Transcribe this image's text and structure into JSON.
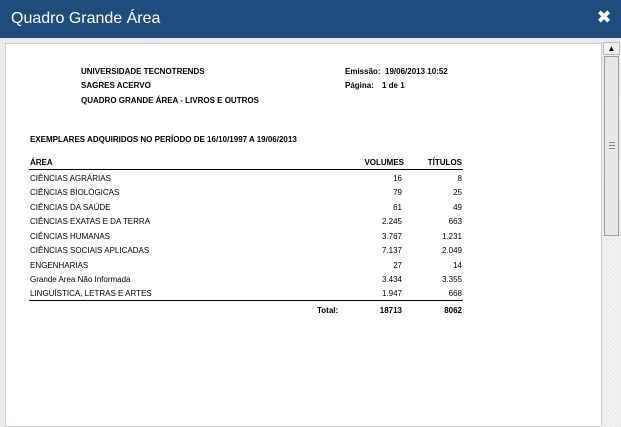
{
  "window": {
    "title": "Quadro Grande Área",
    "close_glyph": "✖"
  },
  "report": {
    "header": {
      "line1": "UNIVERSIDADE TECNOTRENDS",
      "line2": "SAGRES ACERVO",
      "line3": "QUADRO GRANDE ÁREA -  LIVROS E OUTROS",
      "emissao_label": "Emissão:",
      "emissao_value": "19/06/2013 10:52",
      "pagina_label": "Página:",
      "pagina_value": "1 de 1"
    },
    "section_title": "EXEMPLARES ADQUIRIDOS NO PERÍODO DE 16/10/1997 A 19/06/2013",
    "columns": {
      "area": "ÁREA",
      "volumes": "VOLUMES",
      "titulos": "TÍTULOS"
    },
    "rows": [
      {
        "area": "CIÊNCIAS AGRÁRIAS",
        "volumes": "16",
        "titulos": "8"
      },
      {
        "area": "CIÊNCIAS BIOLÓGICAS",
        "volumes": "79",
        "titulos": "25"
      },
      {
        "area": "CIÊNCIAS DA SAÚDE",
        "volumes": "61",
        "titulos": "49"
      },
      {
        "area": "CIÊNCIAS EXATAS E DA TERRA",
        "volumes": "2.245",
        "titulos": "663"
      },
      {
        "area": "CIÊNCIAS HUMANAS",
        "volumes": "3.767",
        "titulos": "1.231"
      },
      {
        "area": "CIÊNCIAS SOCIAIS APLICADAS",
        "volumes": "7.137",
        "titulos": "2.049"
      },
      {
        "area": "ENGENHARIAS",
        "volumes": "27",
        "titulos": "14"
      },
      {
        "area": "Grande Area Não Informada",
        "volumes": "3.434",
        "titulos": "3.355"
      },
      {
        "area": "LINGUÍSTICA, LETRAS E ARTES",
        "volumes": "1.947",
        "titulos": "668"
      }
    ],
    "total": {
      "label": "Total:",
      "volumes": "18713",
      "titulos": "8062"
    }
  },
  "scrollbar": {
    "up_glyph": "▲"
  },
  "icons": {
    "close": "close-icon",
    "scroll_up": "arrow-up-icon"
  }
}
